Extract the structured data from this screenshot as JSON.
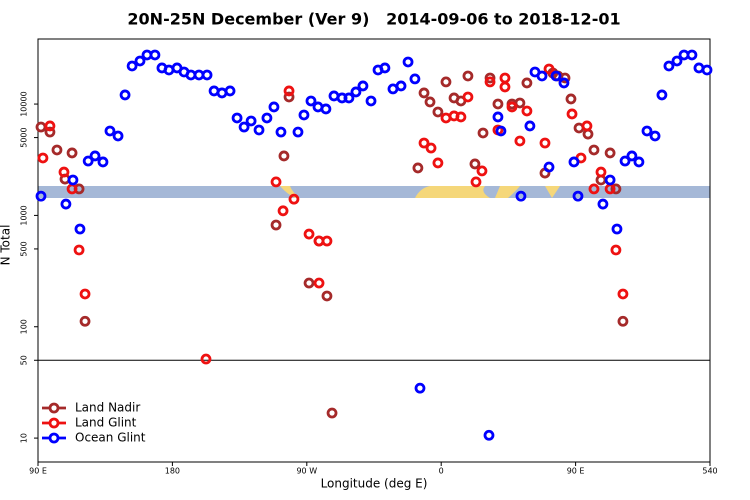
{
  "chart_data": {
    "type": "scatter",
    "title": "20N-25N December (Ver 9)   2014-09-06 to 2018-12-01",
    "x_label": "Longitude (deg E)",
    "y_label": "N Total",
    "log_y": true,
    "legend": "bottom-left",
    "hline": 50,
    "xlim": [
      90,
      540
    ],
    "xticks": [
      {
        "value": 90,
        "label": "90 E"
      },
      180,
      {
        "value": 270,
        "label": "90 W"
      },
      {
        "value": 360,
        "label": "0"
      },
      {
        "value": 450,
        "label": "90 E"
      },
      540
    ],
    "ylim": [
      6.1,
      38400
    ],
    "yticks": [
      10,
      50,
      100,
      500,
      1000,
      5000,
      10000
    ],
    "series": [
      {
        "name": "Land Nadir",
        "color": "#a52a2a",
        "x": [
          92.0,
          98.0,
          102.7,
          108.1,
          112.8,
          117.5,
          121.5,
          249.4,
          254.7,
          258.1,
          271.5,
          278.2,
          283.5,
          286.9,
          344.4,
          348.5,
          352.5,
          357.8,
          363.2,
          368.6,
          373.2,
          377.9,
          382.6,
          388.0,
          392.7,
          398.0,
          407.4,
          412.7,
          417.4,
          429.5,
          434.8,
          438.2,
          442.9,
          446.9,
          452.3,
          458.3,
          462.3,
          467.0,
          473.1,
          477.0,
          481.7
        ],
        "values": [
          6220,
          5610,
          3870,
          2120,
          3640,
          1730,
          112,
          820,
          3420,
          11580,
          247,
          589,
          189,
          16.8,
          2670,
          12590,
          10450,
          8490,
          15810,
          11350,
          10660,
          17870,
          2900,
          5500,
          17150,
          10020,
          10020,
          10230,
          15480,
          2400,
          19010,
          17870,
          17150,
          11120,
          6100,
          5380,
          3870,
          2080,
          3640,
          1730,
          112
        ]
      },
      {
        "name": "Land Glint",
        "color": "#ee1111",
        "x": [
          93.3,
          98.0,
          107.4,
          112.8,
          117.5,
          121.5,
          202.5,
          249.4,
          254.1,
          258.1,
          261.4,
          271.5,
          278.2,
          278.2,
          283.5,
          348.5,
          353.2,
          357.8,
          363.2,
          368.6,
          373.2,
          377.9,
          383.3,
          387.3,
          392.7,
          398.0,
          402.7,
          402.7,
          407.4,
          412.7,
          417.4,
          429.5,
          432.2,
          447.6,
          453.6,
          457.6,
          462.3,
          467.0,
          473.1,
          477.0,
          481.7
        ],
        "values": [
          3280,
          6360,
          2450,
          1730,
          489,
          197,
          51.3,
          2000,
          1100,
          13120,
          1400,
          680,
          589,
          247,
          589,
          4470,
          4030,
          2960,
          7500,
          7820,
          7660,
          11580,
          2000,
          2510,
          15810,
          5850,
          17150,
          14250,
          9420,
          4660,
          8670,
          4470,
          20650,
          8150,
          3280,
          6360,
          1730,
          2450,
          1730,
          489,
          197
        ]
      },
      {
        "name": "Ocean Glint",
        "color": "#0000ff",
        "x": [
          92.0,
          108.7,
          113.4,
          118.1,
          123.6,
          128.2,
          133.5,
          138.2,
          143.6,
          148.3,
          153.0,
          158.3,
          163.0,
          168.3,
          173.0,
          177.7,
          183.1,
          187.8,
          192.4,
          197.8,
          203.2,
          207.9,
          213.2,
          218.6,
          223.3,
          228.0,
          232.7,
          238.0,
          243.3,
          248.0,
          252.7,
          264.1,
          268.1,
          272.8,
          277.5,
          282.8,
          288.2,
          293.6,
          298.2,
          302.9,
          307.6,
          313.0,
          317.7,
          322.3,
          327.7,
          333.1,
          337.8,
          342.4,
          345.8,
          392.0,
          398.0,
          400.0,
          413.4,
          419.4,
          422.8,
          427.5,
          432.2,
          436.9,
          442.2,
          448.9,
          451.6,
          468.3,
          473.1,
          477.7,
          483.1,
          487.7,
          492.4,
          497.8,
          503.2,
          507.8,
          512.5,
          517.9,
          522.6,
          527.9,
          532.6,
          538.0
        ],
        "values": [
          1490,
          1265,
          2080,
          755,
          3080,
          3420,
          3020,
          5730,
          5170,
          12080,
          21980,
          24380,
          27600,
          27600,
          21100,
          20230,
          21100,
          19410,
          18250,
          18250,
          18250,
          13120,
          12590,
          13120,
          7500,
          6220,
          7050,
          5850,
          7500,
          9420,
          5610,
          5610,
          7980,
          10660,
          9420,
          9040,
          11830,
          11350,
          11350,
          12850,
          14550,
          10660,
          20230,
          21100,
          13680,
          14550,
          23880,
          16830,
          28.1,
          10.6,
          7660,
          5730,
          1490,
          6360,
          19410,
          17870,
          2720,
          17870,
          15480,
          3020,
          1490,
          1265,
          2080,
          755,
          3080,
          3420,
          3020,
          5730,
          5170,
          12080,
          21980,
          24380,
          27600,
          27600,
          21100,
          20230
        ]
      }
    ]
  }
}
